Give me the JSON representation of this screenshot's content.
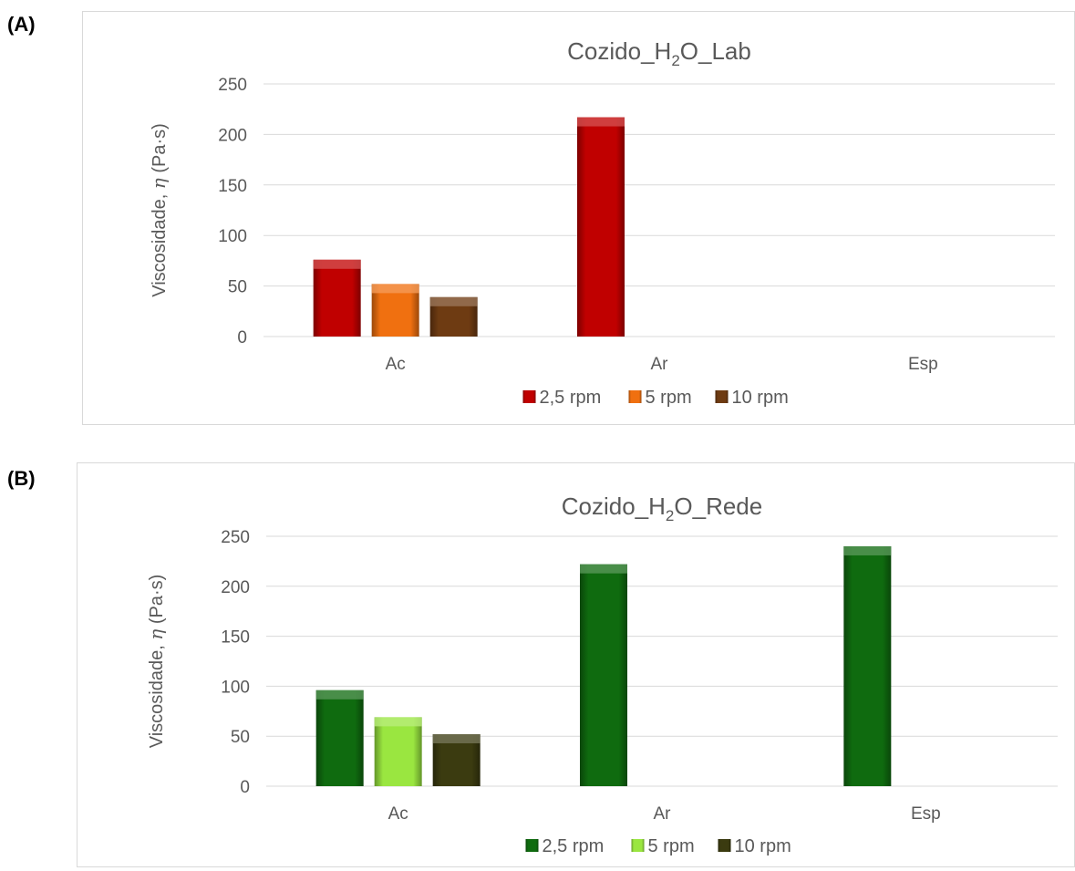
{
  "panels": [
    {
      "label": "(A)",
      "chart_data": {
        "type": "bar",
        "title": {
          "pre": "Cozido_H",
          "sub": "2",
          "post": "O_Lab"
        },
        "ylabel": {
          "pre": "Viscosidade, ",
          "symbol": "η",
          "post": " (Pa·s)"
        },
        "xlabel": "",
        "categories": [
          "Ac",
          "Ar",
          "Esp"
        ],
        "ylim": [
          0,
          250
        ],
        "yticks": [
          0,
          50,
          100,
          150,
          200,
          250
        ],
        "grid": true,
        "legend": "bottom",
        "series": [
          {
            "name": "2,5 rpm",
            "color": "#c00000",
            "values": [
              76,
              217,
              null
            ]
          },
          {
            "name": "5 rpm",
            "color": "#f07010",
            "values": [
              52,
              null,
              null
            ]
          },
          {
            "name": "10 rpm",
            "color": "#6e3b12",
            "values": [
              39,
              null,
              null
            ]
          }
        ]
      }
    },
    {
      "label": "(B)",
      "chart_data": {
        "type": "bar",
        "title": {
          "pre": "Cozido_H",
          "sub": "2",
          "post": "O_Rede"
        },
        "ylabel": {
          "pre": "Viscosidade, ",
          "symbol": "η",
          "post": " (Pa·s)"
        },
        "xlabel": "",
        "categories": [
          "Ac",
          "Ar",
          "Esp"
        ],
        "ylim": [
          0,
          250
        ],
        "yticks": [
          0,
          50,
          100,
          150,
          200,
          250
        ],
        "grid": true,
        "legend": "bottom",
        "series": [
          {
            "name": "2,5 rpm",
            "color": "#0f6b0f",
            "values": [
              96,
              222,
              240
            ]
          },
          {
            "name": "5 rpm",
            "color": "#9ae640",
            "values": [
              69,
              null,
              null
            ]
          },
          {
            "name": "10 rpm",
            "color": "#3b3b10",
            "values": [
              52,
              null,
              null
            ]
          }
        ]
      }
    }
  ]
}
